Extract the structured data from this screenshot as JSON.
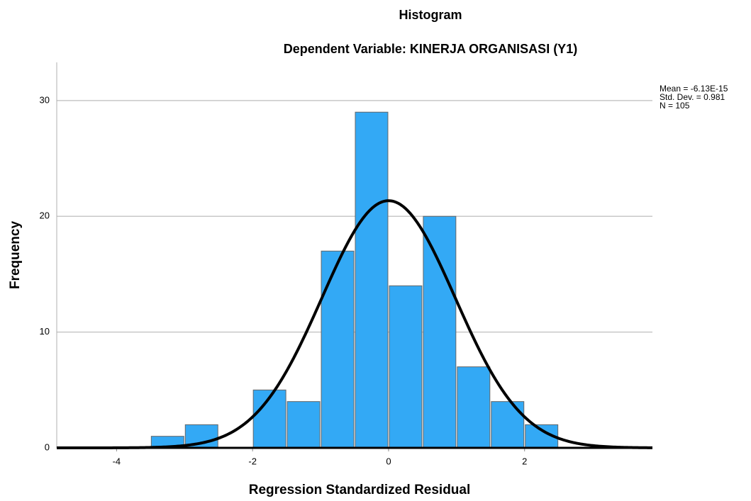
{
  "chart_data": {
    "type": "histogram",
    "title": "Histogram",
    "subtitle": "Dependent Variable: KINERJA ORGANISASI (Y1)",
    "x_label": "Regression Standardized Residual",
    "y_label": "Frequency",
    "bins": [
      -3.5,
      -3,
      -2.5,
      -2,
      -1.5,
      -1,
      -0.5,
      0,
      0.5,
      1,
      1.5,
      2,
      2.5
    ],
    "values": [
      1,
      2,
      0,
      5,
      4,
      17,
      29,
      14,
      20,
      7,
      4,
      2
    ],
    "color": "#33a9f5",
    "curve_color": "#000000",
    "xlim": [
      -4.88,
      3.88
    ],
    "ylim": [
      0,
      33.3
    ],
    "xticks": [
      -4,
      -2,
      0,
      2
    ],
    "yticks": [
      0,
      10,
      20,
      30
    ],
    "grid": true,
    "stats": [
      {
        "value": -6.13e-15,
        "label": "Mean = -6.13E-15"
      },
      {
        "value": 0.981,
        "label": "Std. Dev. = 0.981"
      },
      {
        "value": 105,
        "label": "N = 105"
      }
    ]
  }
}
